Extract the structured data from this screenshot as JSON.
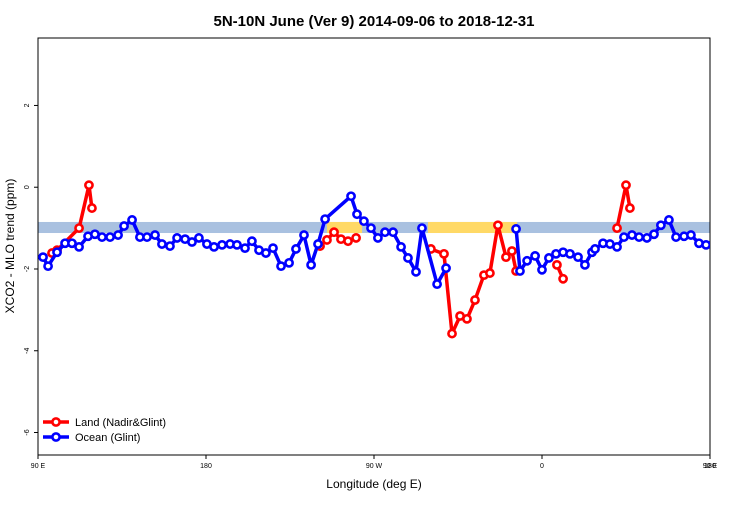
{
  "chart_data": {
    "type": "line",
    "title": "5N-10N June (Ver 9)   2014-09-06 to 2018-12-31",
    "x_label": "Longitude (deg E)",
    "y_label": "XCO2 - MLO trend (ppm)",
    "xlim": [
      90,
      450
    ],
    "xticks": [
      {
        "value": 90,
        "label": "90 E"
      },
      180,
      {
        "value": 270,
        "label": "90 W"
      },
      {
        "value": 360,
        "label": "0"
      },
      {
        "value": 450,
        "label": "90 E"
      },
      {
        "value": 540,
        "label": "180"
      }
    ],
    "ylim": [
      -6.55,
      3.65
    ],
    "yticks": [
      -6,
      -4,
      -2,
      0,
      2
    ],
    "band": {
      "range": [
        -1.12,
        -0.85
      ],
      "color": "#a9c1e0",
      "highlight_color": "#ffd966",
      "highlights": [
        [
          244.8,
          263.6
        ],
        [
          298.9,
          346.6
        ]
      ]
    },
    "legend": "bottom-left",
    "series": [
      {
        "name": "Land (Nadir&Glint)",
        "color": "#ff0000",
        "x": [
          97.5,
          100.2,
          112.0,
          117.3,
          118.9,
          null,
          241.1,
          244.8,
          248.6,
          252.3,
          256.1,
          260.4,
          null,
          300.5,
          307.5,
          311.8,
          316.1,
          319.8,
          324.1,
          328.9,
          332.1,
          336.4,
          340.7,
          343.9,
          346.1,
          null,
          368.0,
          371.3,
          null,
          400.2,
          405.0,
          407.1
        ],
        "values": [
          -1.61,
          -1.54,
          -1.0,
          0.05,
          -0.51,
          null,
          -1.44,
          -1.29,
          -1.1,
          -1.27,
          -1.32,
          -1.24,
          null,
          -1.51,
          -1.63,
          -3.58,
          -3.15,
          -3.22,
          -2.76,
          -2.15,
          -2.1,
          -0.93,
          -1.71,
          -1.56,
          -2.05,
          null,
          -1.9,
          -2.24,
          null,
          -1.0,
          0.05,
          -0.51
        ]
      },
      {
        "name": "Ocean (Glint)",
        "color": "#0000ff",
        "x": [
          92.7,
          95.4,
          100.2,
          104.5,
          108.2,
          112.0,
          116.8,
          120.5,
          124.3,
          128.6,
          132.9,
          136.1,
          140.4,
          144.6,
          148.4,
          152.7,
          156.4,
          160.7,
          164.5,
          168.8,
          172.5,
          176.2,
          180.5,
          184.3,
          188.6,
          192.9,
          196.6,
          200.9,
          204.6,
          208.4,
          212.1,
          215.9,
          220.2,
          224.5,
          228.2,
          232.5,
          236.3,
          240.0,
          243.8,
          257.7,
          260.9,
          264.6,
          268.4,
          272.1,
          275.9,
          280.2,
          284.5,
          288.2,
          292.5,
          295.7,
          303.8,
          308.6,
          null,
          346.1,
          348.2,
          352.0,
          356.3,
          360.0,
          363.7,
          367.5,
          371.3,
          375.0,
          379.3,
          383.0,
          386.8,
          388.4,
          392.7,
          396.4,
          400.2,
          403.9,
          408.2,
          412.0,
          416.2,
          420.0,
          423.7,
          428.0,
          431.8,
          436.1,
          439.8,
          444.1,
          447.9
        ],
        "values": [
          -1.71,
          -1.93,
          -1.59,
          -1.37,
          -1.37,
          -1.46,
          -1.2,
          -1.15,
          -1.22,
          -1.22,
          -1.17,
          -0.95,
          -0.8,
          -1.22,
          -1.22,
          -1.17,
          -1.39,
          -1.44,
          -1.24,
          -1.27,
          -1.34,
          -1.24,
          -1.39,
          -1.46,
          -1.41,
          -1.39,
          -1.41,
          -1.49,
          -1.32,
          -1.54,
          -1.61,
          -1.49,
          -1.93,
          -1.85,
          -1.51,
          -1.17,
          -1.9,
          -1.39,
          -0.78,
          -0.22,
          -0.66,
          -0.83,
          -1.0,
          -1.24,
          -1.1,
          -1.1,
          -1.46,
          -1.73,
          -2.07,
          -1.0,
          -2.37,
          -1.98,
          null,
          -1.02,
          -2.05,
          -1.8,
          -1.68,
          -2.02,
          -1.73,
          -1.63,
          -1.59,
          -1.63,
          -1.71,
          -1.9,
          -1.59,
          -1.51,
          -1.37,
          -1.39,
          -1.46,
          -1.22,
          -1.17,
          -1.22,
          -1.24,
          -1.15,
          -0.93,
          -0.8,
          -1.22,
          -1.2,
          -1.17,
          -1.37,
          -1.41
        ]
      }
    ]
  }
}
